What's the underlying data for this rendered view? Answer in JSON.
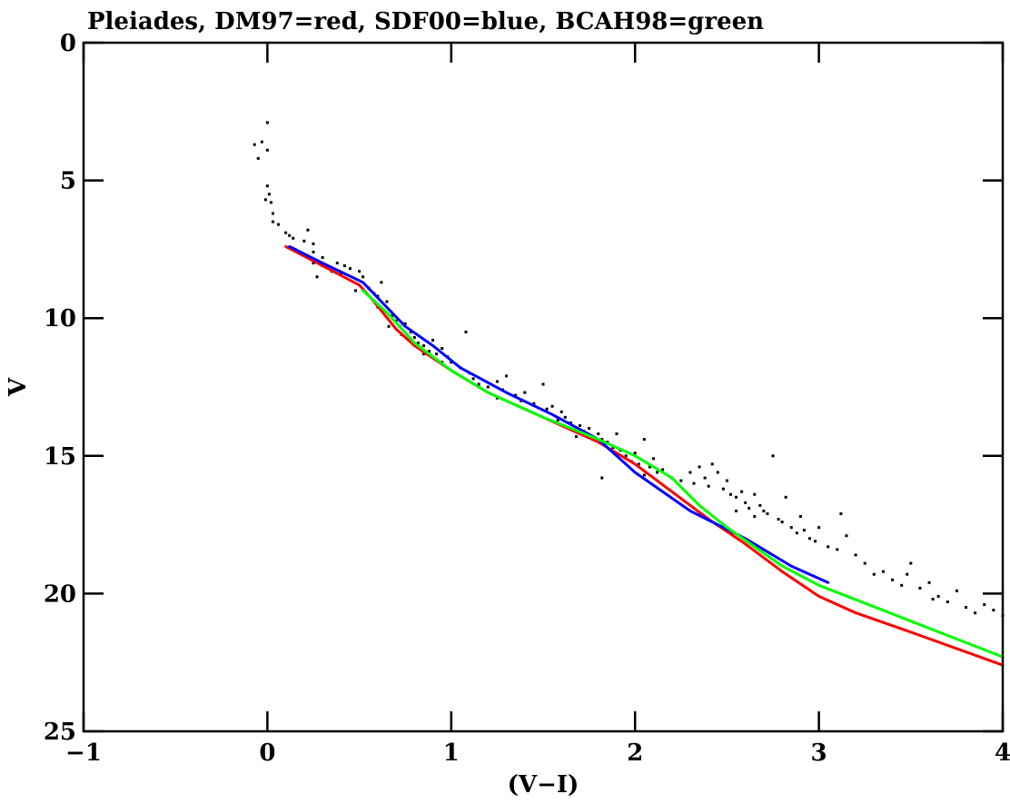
{
  "chart_data": {
    "type": "scatter",
    "title": "Pleiades, DM97=red, SDF00=blue, BCAH98=green",
    "xlabel": "(V−I)",
    "ylabel": "V",
    "xlim": [
      -1,
      4
    ],
    "ylim": [
      0,
      25
    ],
    "y_inverted": true,
    "grid": false,
    "x_ticks": [
      "−1",
      "0",
      "1",
      "2",
      "3",
      "4"
    ],
    "y_ticks": [
      "0",
      "5",
      "10",
      "15",
      "20",
      "25"
    ],
    "stars": [
      [
        -0.07,
        3.7
      ],
      [
        -0.03,
        3.6
      ],
      [
        0.0,
        2.9
      ],
      [
        -0.05,
        4.2
      ],
      [
        0.0,
        3.9
      ],
      [
        0.0,
        5.2
      ],
      [
        0.01,
        5.5
      ],
      [
        -0.01,
        5.7
      ],
      [
        0.02,
        5.8
      ],
      [
        0.03,
        6.2
      ],
      [
        0.03,
        6.5
      ],
      [
        0.06,
        6.6
      ],
      [
        0.1,
        6.9
      ],
      [
        0.12,
        7.0
      ],
      [
        0.14,
        7.1
      ],
      [
        0.15,
        7.5
      ],
      [
        0.2,
        7.2
      ],
      [
        0.22,
        6.8
      ],
      [
        0.25,
        7.3
      ],
      [
        0.25,
        7.6
      ],
      [
        0.3,
        7.8
      ],
      [
        0.25,
        8.0
      ],
      [
        0.3,
        8.1
      ],
      [
        0.35,
        8.3
      ],
      [
        0.27,
        8.5
      ],
      [
        0.38,
        8.0
      ],
      [
        0.42,
        8.1
      ],
      [
        0.45,
        8.2
      ],
      [
        0.5,
        8.3
      ],
      [
        0.52,
        8.5
      ],
      [
        0.55,
        8.9
      ],
      [
        0.58,
        9.1
      ],
      [
        0.62,
        8.7
      ],
      [
        0.6,
        9.2
      ],
      [
        0.65,
        9.4
      ],
      [
        0.63,
        9.7
      ],
      [
        0.68,
        9.9
      ],
      [
        0.7,
        10.1
      ],
      [
        0.72,
        10.3
      ],
      [
        0.75,
        10.2
      ],
      [
        0.78,
        10.5
      ],
      [
        0.8,
        10.7
      ],
      [
        0.82,
        10.9
      ],
      [
        0.85,
        11.0
      ],
      [
        0.88,
        11.2
      ],
      [
        0.9,
        10.8
      ],
      [
        0.92,
        11.3
      ],
      [
        0.95,
        11.1
      ],
      [
        0.98,
        11.4
      ],
      [
        1.0,
        11.6
      ],
      [
        1.05,
        11.8
      ],
      [
        1.08,
        10.5
      ],
      [
        1.1,
        12.0
      ],
      [
        1.12,
        12.2
      ],
      [
        1.15,
        12.4
      ],
      [
        1.2,
        12.5
      ],
      [
        1.25,
        12.3
      ],
      [
        1.28,
        12.6
      ],
      [
        1.3,
        12.1
      ],
      [
        1.35,
        12.8
      ],
      [
        1.38,
        13.0
      ],
      [
        1.4,
        12.7
      ],
      [
        1.45,
        13.1
      ],
      [
        1.5,
        12.4
      ],
      [
        1.52,
        13.3
      ],
      [
        1.55,
        13.2
      ],
      [
        1.6,
        13.4
      ],
      [
        1.62,
        13.6
      ],
      [
        1.65,
        13.8
      ],
      [
        1.7,
        13.9
      ],
      [
        1.72,
        14.1
      ],
      [
        1.75,
        14.0
      ],
      [
        1.8,
        14.2
      ],
      [
        1.82,
        14.4
      ],
      [
        1.85,
        14.5
      ],
      [
        1.88,
        14.7
      ],
      [
        1.9,
        14.2
      ],
      [
        1.92,
        14.8
      ],
      [
        1.95,
        15.0
      ],
      [
        1.98,
        15.2
      ],
      [
        2.0,
        14.9
      ],
      [
        2.02,
        15.3
      ],
      [
        2.05,
        14.4
      ],
      [
        2.08,
        15.4
      ],
      [
        2.1,
        15.1
      ],
      [
        2.12,
        15.6
      ],
      [
        2.15,
        15.5
      ],
      [
        2.2,
        15.8
      ],
      [
        2.25,
        15.9
      ],
      [
        2.3,
        15.6
      ],
      [
        2.32,
        16.0
      ],
      [
        2.35,
        15.4
      ],
      [
        2.38,
        15.8
      ],
      [
        2.4,
        16.1
      ],
      [
        2.42,
        15.3
      ],
      [
        2.45,
        15.6
      ],
      [
        2.48,
        16.2
      ],
      [
        2.5,
        15.9
      ],
      [
        2.52,
        16.4
      ],
      [
        2.55,
        16.5
      ],
      [
        2.58,
        16.3
      ],
      [
        2.6,
        16.7
      ],
      [
        2.62,
        16.9
      ],
      [
        2.65,
        16.4
      ],
      [
        2.68,
        16.8
      ],
      [
        2.7,
        17.0
      ],
      [
        2.72,
        17.1
      ],
      [
        2.75,
        15.0
      ],
      [
        2.78,
        17.3
      ],
      [
        2.8,
        17.4
      ],
      [
        2.82,
        16.5
      ],
      [
        2.85,
        17.6
      ],
      [
        2.88,
        17.8
      ],
      [
        2.9,
        17.2
      ],
      [
        2.92,
        17.7
      ],
      [
        2.95,
        18.0
      ],
      [
        2.98,
        18.1
      ],
      [
        3.0,
        17.6
      ],
      [
        3.05,
        18.3
      ],
      [
        3.1,
        18.4
      ],
      [
        3.15,
        17.9
      ],
      [
        3.2,
        18.6
      ],
      [
        3.25,
        18.9
      ],
      [
        3.3,
        19.3
      ],
      [
        3.35,
        19.2
      ],
      [
        3.4,
        19.5
      ],
      [
        3.45,
        19.7
      ],
      [
        3.5,
        18.9
      ],
      [
        3.55,
        19.8
      ],
      [
        3.6,
        19.6
      ],
      [
        3.65,
        20.1
      ],
      [
        3.7,
        20.3
      ],
      [
        3.75,
        19.9
      ],
      [
        3.8,
        20.5
      ],
      [
        3.85,
        20.7
      ],
      [
        3.9,
        20.4
      ],
      [
        3.95,
        20.6
      ],
      [
        4.0,
        20.8
      ],
      [
        2.65,
        17.2
      ],
      [
        2.55,
        17.0
      ],
      [
        1.58,
        13.7
      ],
      [
        1.68,
        14.3
      ],
      [
        1.25,
        12.9
      ],
      [
        0.95,
        11.6
      ],
      [
        0.85,
        11.3
      ],
      [
        0.73,
        10.6
      ],
      [
        0.66,
        10.3
      ],
      [
        0.6,
        9.6
      ],
      [
        0.48,
        9.0
      ],
      [
        0.4,
        8.4
      ],
      [
        1.82,
        15.8
      ],
      [
        2.05,
        15.7
      ],
      [
        3.12,
        17.1
      ],
      [
        3.48,
        19.3
      ],
      [
        3.62,
        20.2
      ]
    ],
    "series": [
      {
        "color": "#ff0000",
        "x": [
          0.1,
          0.3,
          0.5,
          0.58,
          0.7,
          0.8,
          1.0,
          1.2,
          1.5,
          1.8,
          2.0,
          2.2,
          2.4,
          2.6,
          2.8,
          3.0,
          3.2,
          3.5,
          4.0
        ],
        "y": [
          7.4,
          8.1,
          8.8,
          9.4,
          10.4,
          11.0,
          11.9,
          12.7,
          13.6,
          14.5,
          15.3,
          16.3,
          17.3,
          18.2,
          19.2,
          20.1,
          20.7,
          21.4,
          22.6
        ]
      },
      {
        "color": "#0000ff",
        "x": [
          0.12,
          0.3,
          0.52,
          0.62,
          0.75,
          0.9,
          1.05,
          1.3,
          1.55,
          1.8,
          2.0,
          2.3,
          2.6,
          2.85,
          3.05
        ],
        "y": [
          7.4,
          8.0,
          8.7,
          9.4,
          10.3,
          11.0,
          11.8,
          12.7,
          13.5,
          14.4,
          15.6,
          17.0,
          18.0,
          19.0,
          19.6
        ]
      },
      {
        "color": "#00ff00",
        "x": [
          0.52,
          0.65,
          0.8,
          1.0,
          1.2,
          1.5,
          1.8,
          2.0,
          2.2,
          2.35,
          2.5,
          2.8,
          3.0,
          3.5,
          4.0
        ],
        "y": [
          9.0,
          9.8,
          10.9,
          11.9,
          12.7,
          13.6,
          14.4,
          15.0,
          15.8,
          16.8,
          17.6,
          19.0,
          19.7,
          21.0,
          22.3
        ]
      }
    ]
  }
}
